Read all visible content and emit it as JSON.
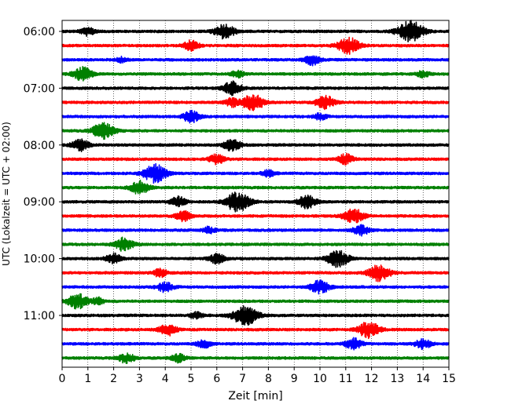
{
  "chart_data": {
    "type": "line",
    "subtype": "helicorder",
    "xlabel": "Zeit  [min]",
    "ylabel": "UTC (Lokalzeit = UTC + 02:00)",
    "xlim": [
      0,
      15
    ],
    "x_ticks": [
      0,
      1,
      2,
      3,
      4,
      5,
      6,
      7,
      8,
      9,
      10,
      11,
      12,
      13,
      14,
      15
    ],
    "x_grid": true,
    "y_grid": false,
    "row_interval_min": 15,
    "row_colors": [
      "#000000",
      "#ff0000",
      "#0000ff",
      "#008000"
    ],
    "y_tick_labels": [
      "06:00",
      "07:00",
      "08:00",
      "09:00",
      "10:00",
      "11:00"
    ],
    "y_tick_rows": [
      0,
      4,
      8,
      12,
      16,
      20
    ],
    "traces": [
      {
        "row": 0,
        "start": "06:00",
        "bursts": [
          {
            "t": 1.0,
            "a": 0.5
          },
          {
            "t": 6.3,
            "a": 0.9
          },
          {
            "t": 13.5,
            "a": 1.3
          }
        ]
      },
      {
        "row": 1,
        "start": "06:15",
        "bursts": [
          {
            "t": 5.0,
            "a": 0.6
          },
          {
            "t": 11.1,
            "a": 1.0
          }
        ]
      },
      {
        "row": 2,
        "start": "06:30",
        "bursts": [
          {
            "t": 2.3,
            "a": 0.3
          },
          {
            "t": 9.7,
            "a": 0.6
          }
        ]
      },
      {
        "row": 3,
        "start": "06:45",
        "bursts": [
          {
            "t": 0.8,
            "a": 0.8
          },
          {
            "t": 6.8,
            "a": 0.4
          },
          {
            "t": 14.0,
            "a": 0.4
          }
        ]
      },
      {
        "row": 4,
        "start": "07:00",
        "bursts": [
          {
            "t": 6.6,
            "a": 0.8
          }
        ]
      },
      {
        "row": 5,
        "start": "07:15",
        "bursts": [
          {
            "t": 6.6,
            "a": 0.5
          },
          {
            "t": 7.4,
            "a": 1.0
          },
          {
            "t": 10.2,
            "a": 0.8
          }
        ]
      },
      {
        "row": 6,
        "start": "07:30",
        "bursts": [
          {
            "t": 5.0,
            "a": 0.7
          },
          {
            "t": 10.0,
            "a": 0.4
          }
        ]
      },
      {
        "row": 7,
        "start": "07:45",
        "bursts": [
          {
            "t": 1.6,
            "a": 1.0
          }
        ]
      },
      {
        "row": 8,
        "start": "08:00",
        "bursts": [
          {
            "t": 0.7,
            "a": 0.7
          },
          {
            "t": 6.6,
            "a": 0.7
          }
        ]
      },
      {
        "row": 9,
        "start": "08:15",
        "bursts": [
          {
            "t": 6.0,
            "a": 0.6
          },
          {
            "t": 11.0,
            "a": 0.6
          }
        ]
      },
      {
        "row": 10,
        "start": "08:30",
        "bursts": [
          {
            "t": 3.6,
            "a": 1.1
          },
          {
            "t": 8.0,
            "a": 0.4
          }
        ]
      },
      {
        "row": 11,
        "start": "08:45",
        "bursts": [
          {
            "t": 3.0,
            "a": 0.8
          }
        ]
      },
      {
        "row": 12,
        "start": "09:00",
        "bursts": [
          {
            "t": 4.5,
            "a": 0.6
          },
          {
            "t": 6.8,
            "a": 1.2
          },
          {
            "t": 9.5,
            "a": 0.8
          }
        ]
      },
      {
        "row": 13,
        "start": "09:15",
        "bursts": [
          {
            "t": 4.7,
            "a": 0.6
          },
          {
            "t": 11.3,
            "a": 0.9
          }
        ]
      },
      {
        "row": 14,
        "start": "09:30",
        "bursts": [
          {
            "t": 5.7,
            "a": 0.4
          },
          {
            "t": 11.6,
            "a": 0.6
          }
        ]
      },
      {
        "row": 15,
        "start": "09:45",
        "bursts": [
          {
            "t": 2.4,
            "a": 0.8
          }
        ]
      },
      {
        "row": 16,
        "start": "10:00",
        "bursts": [
          {
            "t": 2.0,
            "a": 0.6
          },
          {
            "t": 6.0,
            "a": 0.6
          },
          {
            "t": 10.7,
            "a": 1.0
          }
        ]
      },
      {
        "row": 17,
        "start": "10:15",
        "bursts": [
          {
            "t": 3.8,
            "a": 0.5
          },
          {
            "t": 12.3,
            "a": 1.0
          }
        ]
      },
      {
        "row": 18,
        "start": "10:30",
        "bursts": [
          {
            "t": 4.0,
            "a": 0.6
          },
          {
            "t": 10.0,
            "a": 0.8
          }
        ]
      },
      {
        "row": 19,
        "start": "10:45",
        "bursts": [
          {
            "t": 0.6,
            "a": 0.9
          },
          {
            "t": 1.4,
            "a": 0.4
          }
        ]
      },
      {
        "row": 20,
        "start": "11:00",
        "bursts": [
          {
            "t": 7.1,
            "a": 1.2
          },
          {
            "t": 5.2,
            "a": 0.4
          }
        ]
      },
      {
        "row": 21,
        "start": "11:15",
        "bursts": [
          {
            "t": 4.1,
            "a": 0.7
          },
          {
            "t": 11.9,
            "a": 1.0
          }
        ]
      },
      {
        "row": 22,
        "start": "11:30",
        "bursts": [
          {
            "t": 5.5,
            "a": 0.5
          },
          {
            "t": 11.3,
            "a": 0.7
          },
          {
            "t": 14.0,
            "a": 0.6
          }
        ]
      },
      {
        "row": 23,
        "start": "11:45",
        "bursts": [
          {
            "t": 2.5,
            "a": 0.6
          },
          {
            "t": 4.5,
            "a": 0.5
          }
        ]
      }
    ]
  }
}
